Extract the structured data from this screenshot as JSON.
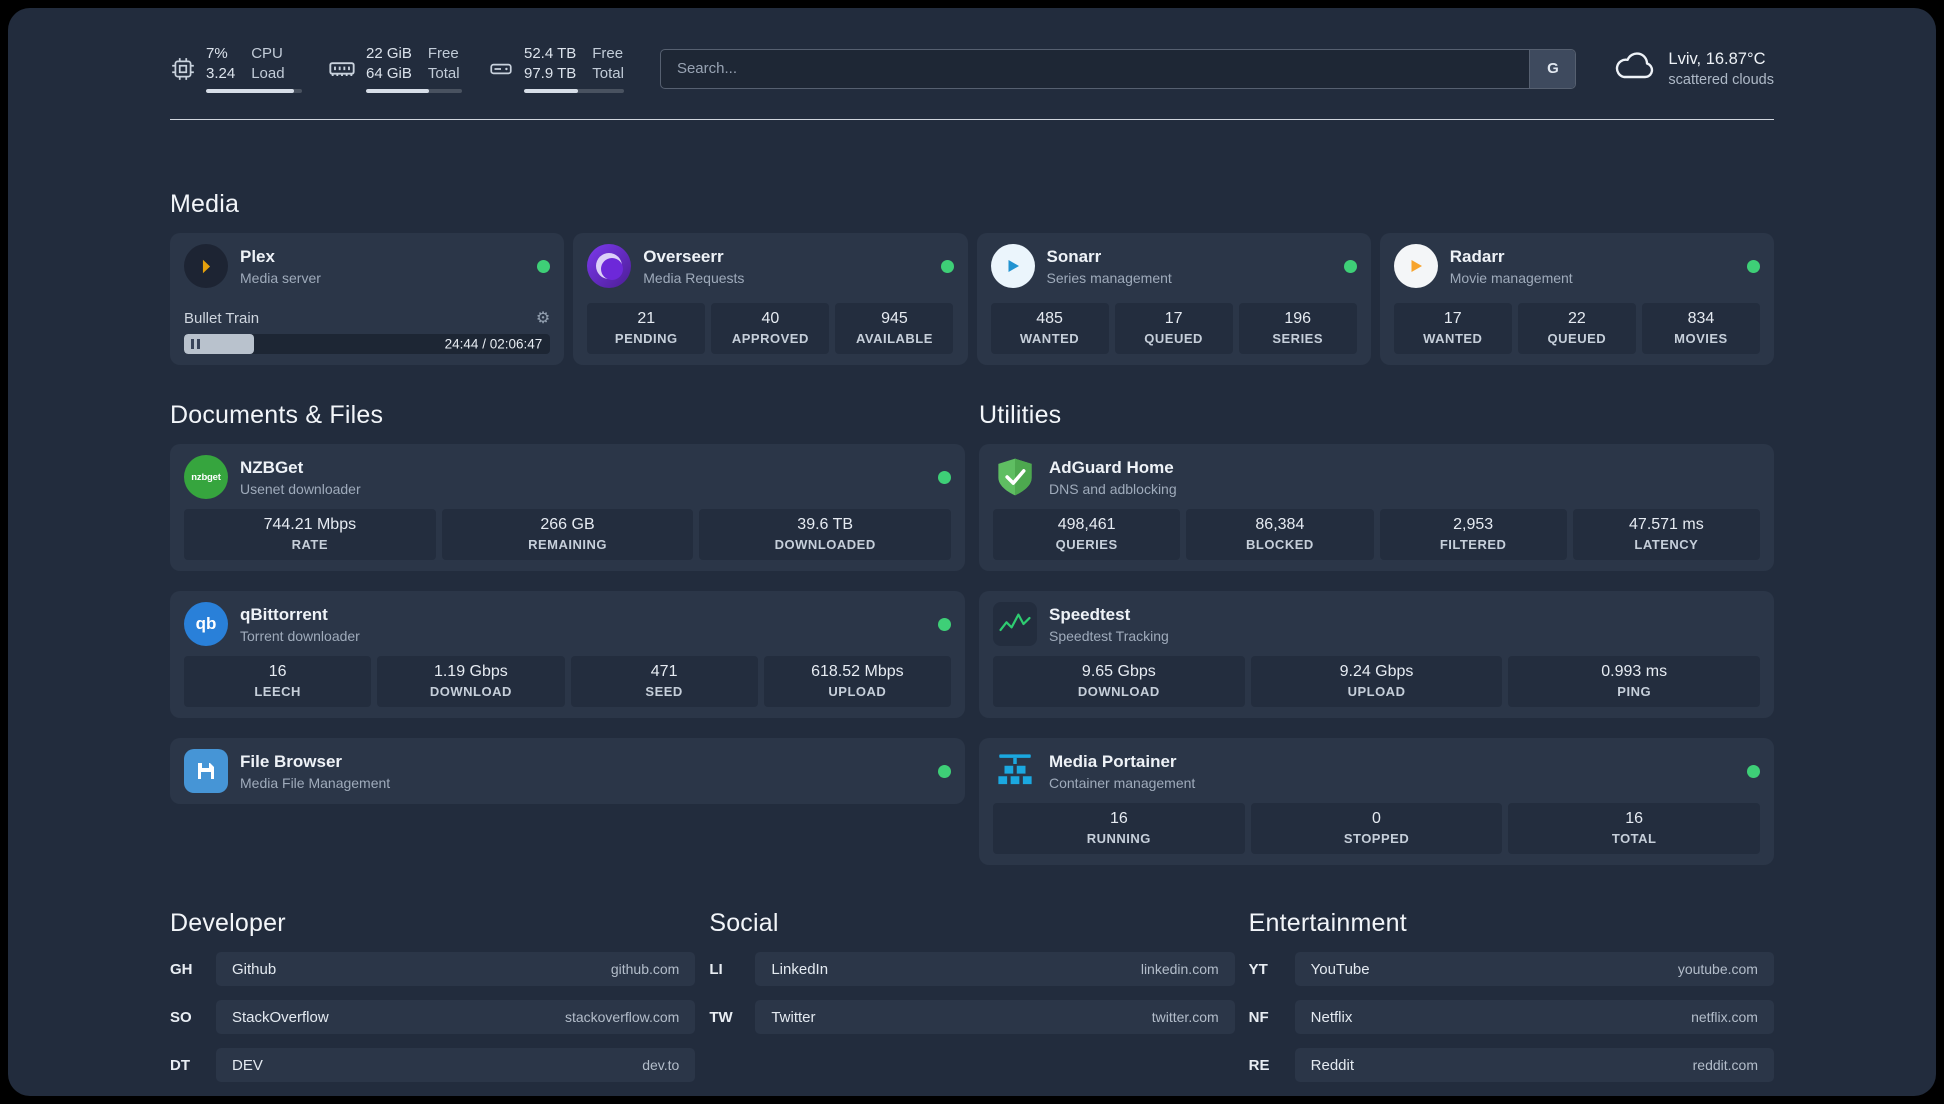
{
  "colors": {
    "page_bg": "#222c3d",
    "card_bg": "#2b3648",
    "tile_bg": "#232d3e",
    "status_online": "#3ecf77"
  },
  "topbar": {
    "cpu": {
      "value_top": "7%",
      "value_bottom": "3.24",
      "label_top": "CPU",
      "label_bottom": "Load",
      "progress": 92
    },
    "memory": {
      "value_top": "22 GiB",
      "value_bottom": "64 GiB",
      "label_top": "Free",
      "label_bottom": "Total",
      "progress": 66
    },
    "disk": {
      "value_top": "52.4 TB",
      "value_bottom": "97.9 TB",
      "label_top": "Free",
      "label_bottom": "Total",
      "progress": 54
    },
    "search": {
      "placeholder": "Search...",
      "provider": "G"
    },
    "weather": {
      "location": "Lviv, 16.87°C",
      "condition": "scattered clouds"
    }
  },
  "sections": {
    "media": {
      "title": "Media",
      "cards": [
        {
          "name": "Plex",
          "subtitle": "Media server",
          "online": true,
          "widget": {
            "title": "Bullet Train",
            "time": "24:44 / 02:06:47",
            "progress_percent": 19
          }
        },
        {
          "name": "Overseerr",
          "subtitle": "Media Requests",
          "online": true,
          "stats": [
            {
              "value": "21",
              "label": "PENDING"
            },
            {
              "value": "40",
              "label": "APPROVED"
            },
            {
              "value": "945",
              "label": "AVAILABLE"
            }
          ]
        },
        {
          "name": "Sonarr",
          "subtitle": "Series management",
          "online": true,
          "stats": [
            {
              "value": "485",
              "label": "WANTED"
            },
            {
              "value": "17",
              "label": "QUEUED"
            },
            {
              "value": "196",
              "label": "SERIES"
            }
          ]
        },
        {
          "name": "Radarr",
          "subtitle": "Movie management",
          "online": true,
          "stats": [
            {
              "value": "17",
              "label": "WANTED"
            },
            {
              "value": "22",
              "label": "QUEUED"
            },
            {
              "value": "834",
              "label": "MOVIES"
            }
          ]
        }
      ]
    },
    "documents": {
      "title": "Documents & Files",
      "cards": [
        {
          "name": "NZBGet",
          "subtitle": "Usenet downloader",
          "online": true,
          "icon_text": "nzbget",
          "stats": [
            {
              "value": "744.21 Mbps",
              "label": "RATE"
            },
            {
              "value": "266 GB",
              "label": "REMAINING"
            },
            {
              "value": "39.6 TB",
              "label": "DOWNLOADED"
            }
          ]
        },
        {
          "name": "qBittorrent",
          "subtitle": "Torrent downloader",
          "online": true,
          "icon_text": "qb",
          "stats": [
            {
              "value": "16",
              "label": "LEECH"
            },
            {
              "value": "1.19 Gbps",
              "label": "DOWNLOAD"
            },
            {
              "value": "471",
              "label": "SEED"
            },
            {
              "value": "618.52 Mbps",
              "label": "UPLOAD"
            }
          ]
        },
        {
          "name": "File Browser",
          "subtitle": "Media File Management",
          "online": true,
          "stats": []
        }
      ]
    },
    "utilities": {
      "title": "Utilities",
      "cards": [
        {
          "name": "AdGuard Home",
          "subtitle": "DNS and adblocking",
          "stats": [
            {
              "value": "498,461",
              "label": "QUERIES"
            },
            {
              "value": "86,384",
              "label": "BLOCKED"
            },
            {
              "value": "2,953",
              "label": "FILTERED"
            },
            {
              "value": "47.571 ms",
              "label": "LATENCY"
            }
          ]
        },
        {
          "name": "Speedtest",
          "subtitle": "Speedtest Tracking",
          "stats": [
            {
              "value": "9.65 Gbps",
              "label": "DOWNLOAD"
            },
            {
              "value": "9.24 Gbps",
              "label": "UPLOAD"
            },
            {
              "value": "0.993 ms",
              "label": "PING"
            }
          ]
        },
        {
          "name": "Media Portainer",
          "subtitle": "Container management",
          "online": true,
          "stats": [
            {
              "value": "16",
              "label": "RUNNING"
            },
            {
              "value": "0",
              "label": "STOPPED"
            },
            {
              "value": "16",
              "label": "TOTAL"
            }
          ]
        }
      ]
    }
  },
  "bookmarks": {
    "groups": [
      {
        "title": "Developer",
        "items": [
          {
            "abbr": "GH",
            "name": "Github",
            "domain": "github.com"
          },
          {
            "abbr": "SO",
            "name": "StackOverflow",
            "domain": "stackoverflow.com"
          },
          {
            "abbr": "DT",
            "name": "DEV",
            "domain": "dev.to"
          }
        ]
      },
      {
        "title": "Social",
        "items": [
          {
            "abbr": "LI",
            "name": "LinkedIn",
            "domain": "linkedin.com"
          },
          {
            "abbr": "TW",
            "name": "Twitter",
            "domain": "twitter.com"
          }
        ]
      },
      {
        "title": "Entertainment",
        "items": [
          {
            "abbr": "YT",
            "name": "YouTube",
            "domain": "youtube.com"
          },
          {
            "abbr": "NF",
            "name": "Netflix",
            "domain": "netflix.com"
          },
          {
            "abbr": "RE",
            "name": "Reddit",
            "domain": "reddit.com"
          }
        ]
      }
    ]
  }
}
